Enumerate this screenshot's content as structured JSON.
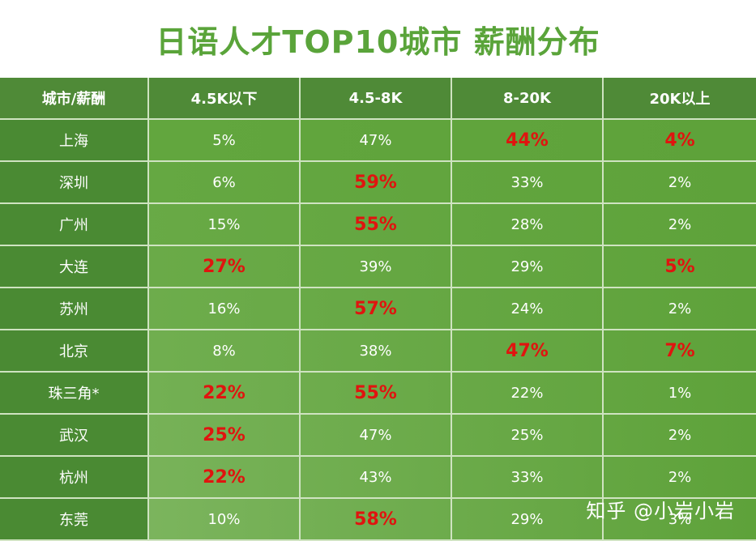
{
  "title": "日语人才TOP10城市 薪酬分布",
  "watermark": "知乎 @小岩小岩",
  "colors": {
    "title": "#5aa43a",
    "header_bg": "#4f8a37",
    "label_bg": "#4a8a33",
    "body_bg": "#62a63e",
    "highlight": "#e0140f",
    "grid": "#cfe3c1"
  },
  "chart_data": {
    "type": "table",
    "columns": [
      "城市/薪酬",
      "4.5K以下",
      "4.5-8K",
      "8-20K",
      "20K以上"
    ],
    "rows": [
      {
        "city": "上海",
        "values": [
          "5%",
          "47%",
          "44%",
          "4%"
        ],
        "highlight": [
          false,
          false,
          true,
          true
        ]
      },
      {
        "city": "深圳",
        "values": [
          "6%",
          "59%",
          "33%",
          "2%"
        ],
        "highlight": [
          false,
          true,
          false,
          false
        ]
      },
      {
        "city": "广州",
        "values": [
          "15%",
          "55%",
          "28%",
          "2%"
        ],
        "highlight": [
          false,
          true,
          false,
          false
        ]
      },
      {
        "city": "大连",
        "values": [
          "27%",
          "39%",
          "29%",
          "5%"
        ],
        "highlight": [
          true,
          false,
          false,
          true
        ]
      },
      {
        "city": "苏州",
        "values": [
          "16%",
          "57%",
          "24%",
          "2%"
        ],
        "highlight": [
          false,
          true,
          false,
          false
        ]
      },
      {
        "city": "北京",
        "values": [
          "8%",
          "38%",
          "47%",
          "7%"
        ],
        "highlight": [
          false,
          false,
          true,
          true
        ]
      },
      {
        "city": "珠三角*",
        "values": [
          "22%",
          "55%",
          "22%",
          "1%"
        ],
        "highlight": [
          true,
          true,
          false,
          false
        ]
      },
      {
        "city": "武汉",
        "values": [
          "25%",
          "47%",
          "25%",
          "2%"
        ],
        "highlight": [
          true,
          false,
          false,
          false
        ]
      },
      {
        "city": "杭州",
        "values": [
          "22%",
          "43%",
          "33%",
          "2%"
        ],
        "highlight": [
          true,
          false,
          false,
          false
        ]
      },
      {
        "city": "东莞",
        "values": [
          "10%",
          "58%",
          "29%",
          "3%"
        ],
        "highlight": [
          false,
          true,
          false,
          false
        ]
      }
    ]
  }
}
